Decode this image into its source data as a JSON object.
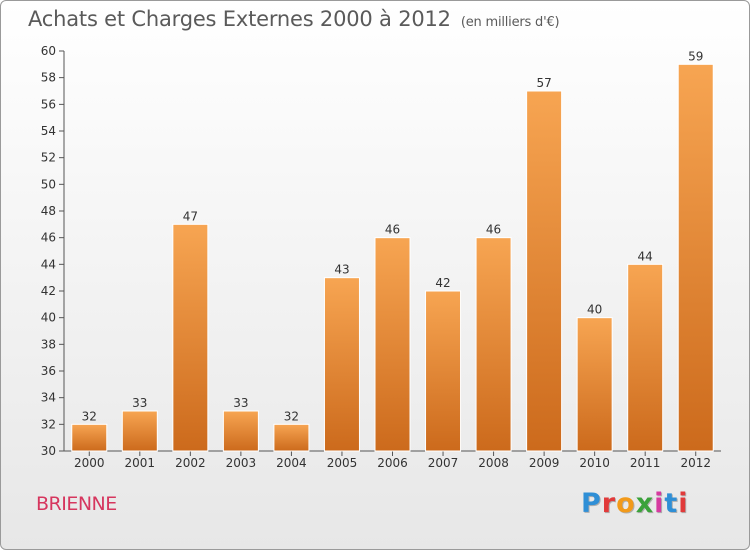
{
  "header": {
    "title": "Achats et Charges Externes 2000 à 2012",
    "subtitle": "(en milliers d'€)"
  },
  "footer": {
    "commune": "BRIENNE",
    "logo": [
      "P",
      "r",
      "o",
      "x",
      "i",
      "t",
      "i"
    ]
  },
  "colors": {
    "bar_top": "#f7a552",
    "bar_bottom": "#cc6a1c",
    "commune_text": "#d6365e",
    "logo_letters": [
      "#2f8fd6",
      "#e13a3a",
      "#f29a1a",
      "#3aa23a",
      "#d63aa0",
      "#2f8fd6",
      "#e13a3a"
    ]
  },
  "chart_data": {
    "type": "bar",
    "title": "Achats et Charges Externes 2000 à 2012",
    "subtitle": "(en milliers d'€)",
    "categories": [
      "2000",
      "2001",
      "2002",
      "2003",
      "2004",
      "2005",
      "2006",
      "2007",
      "2008",
      "2009",
      "2010",
      "2011",
      "2012"
    ],
    "values": [
      32,
      33,
      47,
      33,
      32,
      43,
      46,
      42,
      46,
      57,
      40,
      44,
      59
    ],
    "ylim": [
      30,
      60
    ],
    "yticks": [
      30,
      32,
      34,
      36,
      38,
      40,
      42,
      44,
      46,
      48,
      50,
      52,
      54,
      56,
      58,
      60
    ],
    "grid": false,
    "data_labels": true
  }
}
